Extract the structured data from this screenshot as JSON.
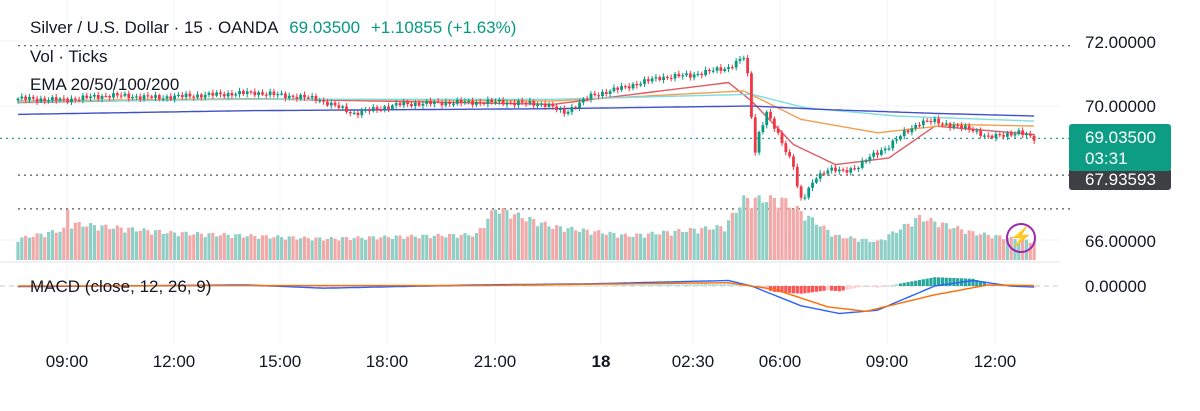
{
  "legend": {
    "symbol": "Silver / U.S. Dollar · 15 · OANDA",
    "last": "69.03500",
    "change": "+1.10855 (+1.63%)",
    "volume": "Vol · Ticks",
    "ema": "EMA 20/50/100/200",
    "macd": "MACD (close, 12, 26, 9)"
  },
  "price_badge": {
    "price": "69.03500",
    "countdown": "03:31"
  },
  "hidden_badge": "67.93593",
  "icons": {
    "alert": "lightning-icon"
  },
  "colors": {
    "up": "#089981",
    "down": "#F23645",
    "vol_up": "#8ECFC6",
    "vol_down": "#F4A9A9",
    "ema20": "#E05A63",
    "ema50": "#F0A050",
    "ema100": "#80DCE0",
    "ema200": "#4050C8",
    "macd": "#2962FF",
    "signal": "#FF6D00"
  },
  "chart_data": {
    "type": "candlestick",
    "title": "Silver / U.S. Dollar · 15 · OANDA",
    "x_ticks": [
      "09:00",
      "12:00",
      "15:00",
      "18:00",
      "21:00",
      "18",
      "02:30",
      "06:00",
      "09:00",
      "12:00"
    ],
    "y_ticks": [
      "72.00000",
      "70.00000",
      "66.00000"
    ],
    "macd_ticks": [
      "0.00000"
    ],
    "ylim": [
      65.5,
      73.0
    ],
    "anchors": [
      [
        0,
        70.22
      ],
      [
        12,
        70.18
      ],
      [
        24,
        70.32
      ],
      [
        36,
        70.25
      ],
      [
        48,
        70.32
      ],
      [
        62,
        70.4
      ],
      [
        78,
        70.22
      ],
      [
        88,
        69.78
      ],
      [
        100,
        70.05
      ],
      [
        112,
        70.1
      ],
      [
        126,
        70.12
      ],
      [
        138,
        70.05
      ],
      [
        143,
        69.8
      ],
      [
        150,
        70.3
      ],
      [
        160,
        70.6
      ],
      [
        168,
        70.85
      ],
      [
        176,
        70.92
      ],
      [
        186,
        71.15
      ],
      [
        190,
        71.45
      ],
      [
        191,
        70.9
      ],
      [
        192,
        69.7
      ],
      [
        193,
        68.65
      ],
      [
        194,
        69.2
      ],
      [
        196,
        69.8
      ],
      [
        200,
        68.9
      ],
      [
        203,
        68.25
      ],
      [
        204,
        67.6
      ],
      [
        205,
        67.2
      ],
      [
        206,
        67.3
      ],
      [
        209,
        67.9
      ],
      [
        212,
        68.1
      ],
      [
        216,
        68.05
      ],
      [
        220,
        68.2
      ],
      [
        224,
        68.55
      ],
      [
        228,
        68.8
      ],
      [
        232,
        69.2
      ],
      [
        236,
        69.5
      ],
      [
        240,
        69.55
      ],
      [
        245,
        69.4
      ],
      [
        250,
        69.3
      ],
      [
        254,
        69.05
      ],
      [
        258,
        69.15
      ],
      [
        262,
        69.2
      ],
      [
        266,
        69.04
      ]
    ],
    "ema_levels": {
      "ema20": [
        [
          0,
          70.1
        ],
        [
          60,
          70.22
        ],
        [
          140,
          70.05
        ],
        [
          186,
          70.7
        ],
        [
          192,
          70.15
        ],
        [
          203,
          68.85
        ],
        [
          214,
          68.25
        ],
        [
          228,
          68.45
        ],
        [
          240,
          69.4
        ],
        [
          266,
          69.15
        ]
      ],
      "ema50": [
        [
          0,
          70.15
        ],
        [
          60,
          70.22
        ],
        [
          140,
          70.15
        ],
        [
          190,
          70.45
        ],
        [
          205,
          69.6
        ],
        [
          225,
          69.2
        ],
        [
          245,
          69.45
        ],
        [
          266,
          69.4
        ]
      ],
      "ema100": [
        [
          0,
          70.12
        ],
        [
          60,
          70.2
        ],
        [
          140,
          70.2
        ],
        [
          192,
          70.35
        ],
        [
          206,
          69.95
        ],
        [
          230,
          69.7
        ],
        [
          266,
          69.55
        ]
      ],
      "ema200": [
        [
          0,
          69.75
        ],
        [
          60,
          69.86
        ],
        [
          140,
          69.92
        ],
        [
          192,
          70.0
        ],
        [
          210,
          69.9
        ],
        [
          240,
          69.78
        ],
        [
          266,
          69.7
        ]
      ]
    },
    "volume_levels": [
      [
        0,
        0.35
      ],
      [
        12,
        0.5
      ],
      [
        12.5,
        0.92
      ],
      [
        14,
        0.6
      ],
      [
        40,
        0.45
      ],
      [
        80,
        0.35
      ],
      [
        120,
        0.42
      ],
      [
        125,
        0.85
      ],
      [
        140,
        0.55
      ],
      [
        160,
        0.4
      ],
      [
        185,
        0.55
      ],
      [
        190,
        1.0
      ],
      [
        200,
        1.0
      ],
      [
        206,
        0.75
      ],
      [
        214,
        0.4
      ],
      [
        225,
        0.3
      ],
      [
        236,
        0.7
      ],
      [
        250,
        0.45
      ],
      [
        266,
        0.3
      ]
    ],
    "macd_line": [
      [
        0,
        -0.03
      ],
      [
        60,
        0.05
      ],
      [
        80,
        -0.1
      ],
      [
        120,
        0.05
      ],
      [
        150,
        0.1
      ],
      [
        186,
        0.25
      ],
      [
        192,
        0.0
      ],
      [
        205,
        -0.9
      ],
      [
        215,
        -1.25
      ],
      [
        225,
        -1.1
      ],
      [
        240,
        0.0
      ],
      [
        250,
        0.25
      ],
      [
        260,
        0.0
      ],
      [
        266,
        -0.05
      ]
    ],
    "signal_line": [
      [
        0,
        0.0
      ],
      [
        60,
        0.02
      ],
      [
        120,
        0.02
      ],
      [
        186,
        0.15
      ],
      [
        198,
        -0.15
      ],
      [
        212,
        -0.95
      ],
      [
        222,
        -1.15
      ],
      [
        240,
        -0.4
      ],
      [
        254,
        0.05
      ],
      [
        266,
        0.02
      ]
    ],
    "current_price": 69.035,
    "dotted_levels": [
      71.8,
      67.93593,
      66.93
    ]
  }
}
